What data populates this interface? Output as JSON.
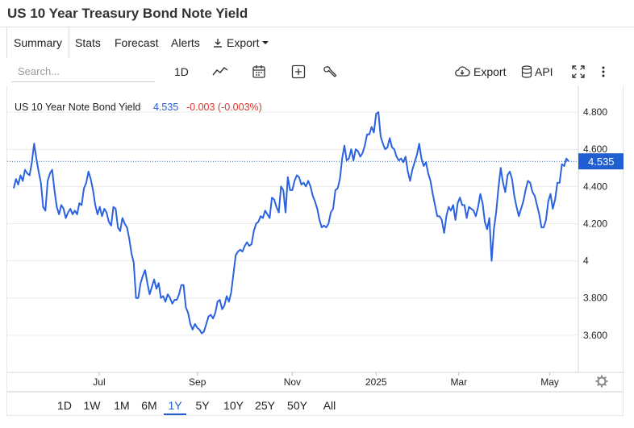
{
  "page": {
    "title": "US 10 Year Treasury Bond Note Yield"
  },
  "tabs": [
    {
      "label": "Summary",
      "active": true
    },
    {
      "label": "Stats"
    },
    {
      "label": "Forecast"
    },
    {
      "label": "Alerts"
    },
    {
      "label": "Export",
      "icon": "download-icon",
      "dropdown": true
    }
  ],
  "toolbar": {
    "search_placeholder": "Search...",
    "interval_label": "1D",
    "export_label": "Export",
    "api_label": "API",
    "icons": [
      "line-chart-icon",
      "calendar-icon",
      "add-compare-icon",
      "wrench-icon",
      "cloud-download-icon",
      "database-icon",
      "fullscreen-icon",
      "more-vertical-icon"
    ]
  },
  "legend": {
    "name": "US 10 Year Note Bond Yield",
    "value": "4.535",
    "change": "-0.003 (-0.003%)",
    "value_color": "#1f5fd1",
    "change_color": "#d9342b"
  },
  "colors": {
    "line": "#2a62e0",
    "accent": "#1f5fd1",
    "grid": "#ececec"
  },
  "chart_data": {
    "type": "line",
    "series": [
      {
        "name": "US 10 Year Note Bond Yield",
        "values": [
          4.39,
          4.44,
          4.41,
          4.46,
          4.43,
          4.49,
          4.47,
          4.46,
          4.53,
          4.63,
          4.55,
          4.48,
          4.42,
          4.29,
          4.27,
          4.43,
          4.47,
          4.49,
          4.38,
          4.29,
          4.25,
          4.3,
          4.28,
          4.23,
          4.26,
          4.28,
          4.25,
          4.27,
          4.25,
          4.31,
          4.3,
          4.39,
          4.42,
          4.48,
          4.44,
          4.38,
          4.3,
          4.25,
          4.29,
          4.24,
          4.28,
          4.26,
          4.21,
          4.19,
          4.29,
          4.28,
          4.18,
          4.16,
          4.23,
          4.2,
          4.18,
          4.12,
          4.04,
          3.99,
          3.8,
          3.8,
          3.88,
          3.92,
          3.95,
          3.88,
          3.82,
          3.86,
          3.9,
          3.85,
          3.88,
          3.8,
          3.81,
          3.78,
          3.82,
          3.8,
          3.77,
          3.79,
          3.79,
          3.82,
          3.87,
          3.87,
          3.75,
          3.72,
          3.66,
          3.63,
          3.66,
          3.64,
          3.63,
          3.61,
          3.62,
          3.66,
          3.7,
          3.71,
          3.69,
          3.72,
          3.78,
          3.79,
          3.74,
          3.76,
          3.81,
          3.78,
          3.83,
          3.93,
          4.03,
          4.05,
          4.06,
          4.05,
          4.08,
          4.1,
          4.08,
          4.09,
          4.16,
          4.2,
          4.21,
          4.24,
          4.23,
          4.27,
          4.25,
          4.23,
          4.34,
          4.33,
          4.29,
          4.26,
          4.4,
          4.38,
          4.26,
          4.45,
          4.38,
          4.38,
          4.43,
          4.46,
          4.45,
          4.41,
          4.42,
          4.4,
          4.43,
          4.4,
          4.35,
          4.32,
          4.28,
          4.22,
          4.18,
          4.19,
          4.18,
          4.2,
          4.26,
          4.28,
          4.38,
          4.39,
          4.44,
          4.55,
          4.62,
          4.54,
          4.55,
          4.6,
          4.54,
          4.6,
          4.59,
          4.56,
          4.58,
          4.62,
          4.68,
          4.68,
          4.72,
          4.69,
          4.79,
          4.8,
          4.67,
          4.63,
          4.6,
          4.61,
          4.66,
          4.61,
          4.6,
          4.56,
          4.54,
          4.55,
          4.53,
          4.56,
          4.48,
          4.43,
          4.49,
          4.53,
          4.57,
          4.63,
          4.55,
          4.51,
          4.53,
          4.47,
          4.43,
          4.36,
          4.3,
          4.24,
          4.24,
          4.22,
          4.15,
          4.24,
          4.29,
          4.27,
          4.3,
          4.22,
          4.31,
          4.34,
          4.3,
          4.3,
          4.23,
          4.29,
          4.28,
          4.27,
          4.24,
          4.29,
          4.36,
          4.31,
          4.21,
          4.17,
          4.23,
          4.0,
          4.17,
          4.26,
          4.39,
          4.5,
          4.42,
          4.37,
          4.46,
          4.48,
          4.44,
          4.35,
          4.29,
          4.24,
          4.28,
          4.32,
          4.38,
          4.43,
          4.42,
          4.37,
          4.35,
          4.3,
          4.25,
          4.18,
          4.18,
          4.22,
          4.32,
          4.36,
          4.28,
          4.33,
          4.42,
          4.42,
          4.52,
          4.51,
          4.55,
          4.535
        ]
      }
    ],
    "x_labels": [
      "Jul",
      "Sep",
      "Nov",
      "2025",
      "Mar",
      "May"
    ],
    "y_ticks": [
      3.6,
      3.8,
      4.0,
      4.2,
      4.4,
      4.6,
      4.8
    ],
    "y_tick_labels": [
      "3.600",
      "3.800",
      "4",
      "4.200",
      "4.400",
      "4.600",
      "4.800"
    ],
    "ylim": [
      3.4,
      4.9
    ],
    "last_value": 4.535,
    "last_label": "4.535",
    "grid": true,
    "legend_position": "top-left"
  },
  "ranges": [
    {
      "label": "1D"
    },
    {
      "label": "1W"
    },
    {
      "label": "1M"
    },
    {
      "label": "6M"
    },
    {
      "label": "1Y",
      "active": true
    },
    {
      "label": "5Y"
    },
    {
      "label": "10Y"
    },
    {
      "label": "25Y"
    },
    {
      "label": "50Y"
    },
    {
      "label": "All"
    }
  ]
}
